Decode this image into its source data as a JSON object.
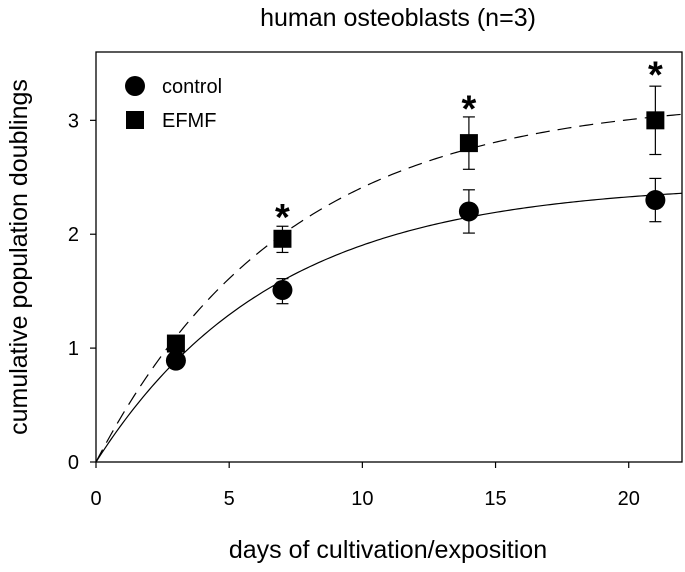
{
  "chart_data": {
    "type": "scatter",
    "title": "human osteoblasts (n=3)",
    "xlabel": "days of cultivation/exposition",
    "ylabel": "cumulative population doublings",
    "xlim": [
      0,
      22
    ],
    "ylim": [
      0,
      3.6
    ],
    "xticks": [
      0,
      5,
      10,
      15,
      20
    ],
    "yticks": [
      0,
      1,
      2,
      3
    ],
    "grid": false,
    "legend_position": "top-left",
    "series": [
      {
        "name": "control",
        "marker": "circle",
        "fit_line": "solid",
        "fit_model": "a*(1-exp(-b*x))",
        "fit_params": {
          "a": 2.45,
          "b": 0.15
        },
        "x": [
          3,
          7,
          14,
          21
        ],
        "y": [
          0.89,
          1.51,
          2.2,
          2.3
        ],
        "err_low": [
          0.89,
          1.39,
          2.01,
          2.11
        ],
        "err_high": [
          0.89,
          1.61,
          2.39,
          2.49
        ]
      },
      {
        "name": "EFMF",
        "marker": "square",
        "fit_line": "dashed",
        "fit_model": "a*(1-exp(-b*x))",
        "fit_params": {
          "a": 3.2,
          "b": 0.14
        },
        "x": [
          3,
          7,
          14,
          21
        ],
        "y": [
          1.04,
          1.96,
          2.8,
          3.0
        ],
        "err_low": [
          1.04,
          1.84,
          2.57,
          2.7
        ],
        "err_high": [
          1.04,
          2.07,
          3.03,
          3.3
        ]
      }
    ],
    "annotations": [
      {
        "text": "*",
        "x": 7,
        "y": 2.25
      },
      {
        "text": "*",
        "x": 14,
        "y": 3.2
      },
      {
        "text": "*",
        "x": 21,
        "y": 3.5
      }
    ]
  }
}
